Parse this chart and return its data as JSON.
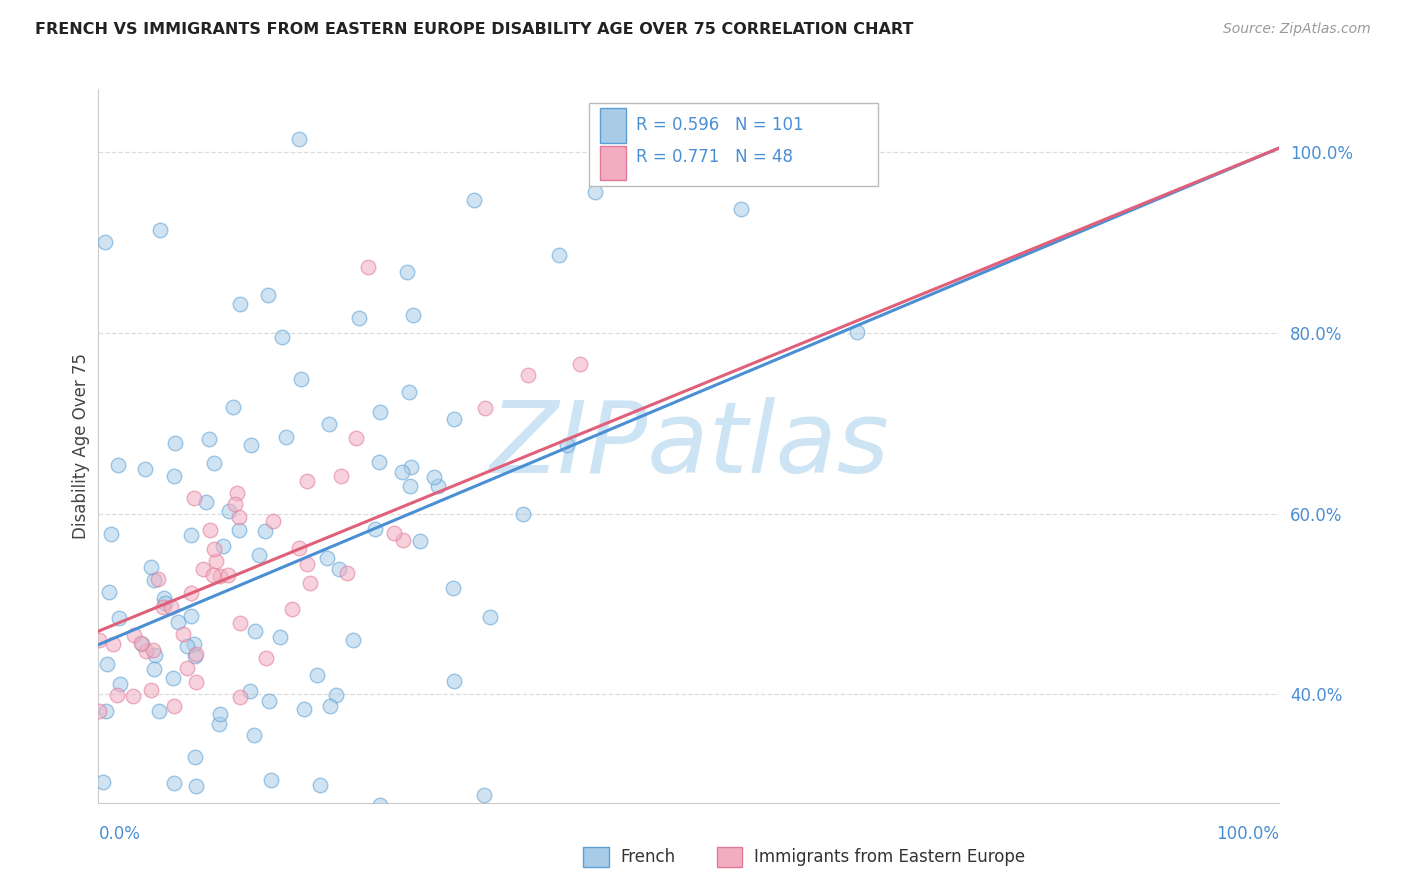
{
  "title": "FRENCH VS IMMIGRANTS FROM EASTERN EUROPE DISABILITY AGE OVER 75 CORRELATION CHART",
  "source": "Source: ZipAtlas.com",
  "ylabel": "Disability Age Over 75",
  "watermark": "ZIPatlas",
  "blue_R": 0.596,
  "blue_N": 101,
  "pink_R": 0.771,
  "pink_N": 48,
  "legend_french": "French",
  "legend_immigrants": "Immigrants from Eastern Europe",
  "blue_fill": "#a8cce8",
  "blue_edge": "#5b9fd4",
  "pink_fill": "#f2aec0",
  "pink_edge": "#e07898",
  "blue_line": "#4a8fd4",
  "pink_line": "#e0607a",
  "label_color": "#4a8fd4",
  "title_color": "#222222",
  "source_color": "#999999",
  "grid_color": "#dddddd",
  "watermark_color": "#cde4f5",
  "xlim": [
    0.0,
    1.0
  ],
  "ylim": [
    0.28,
    1.07
  ],
  "ytick_values": [
    0.4,
    0.6,
    0.8,
    1.0
  ],
  "blue_line_x0": 0.0,
  "blue_line_y0": 0.455,
  "blue_line_x1": 1.0,
  "blue_line_y1": 1.005,
  "pink_line_x0": 0.0,
  "pink_line_y0": 0.47,
  "pink_line_x1": 1.0,
  "pink_line_y1": 1.005
}
